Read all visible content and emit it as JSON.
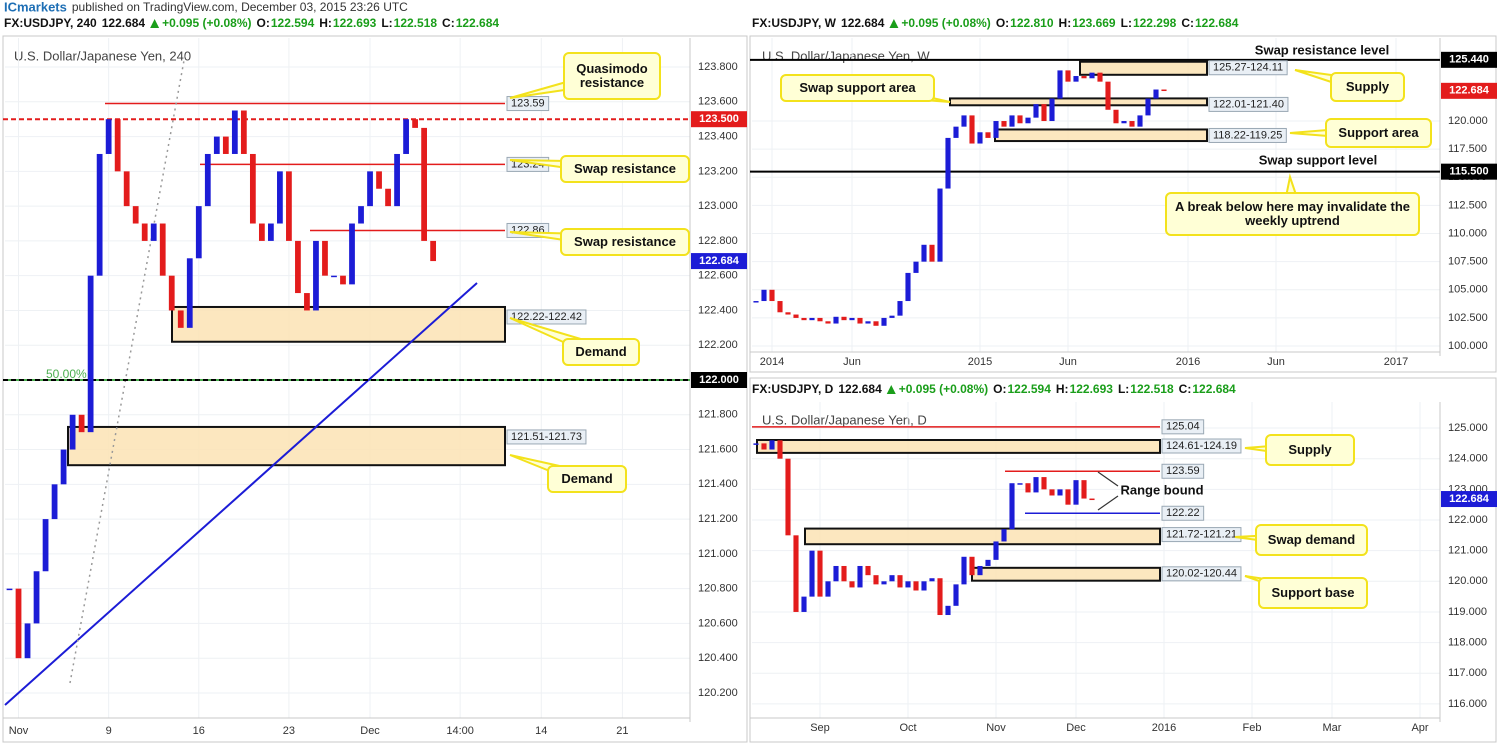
{
  "publisher": "ICmarkets",
  "byline": "published on TradingView.com, December 03, 2015 23:26 UTC",
  "chart_data": [
    {
      "type": "candlestick",
      "header": {
        "symbol": "FX:USDJPY, 240",
        "last": "122.684",
        "change": "+0.095 (+0.08%)",
        "ohlc": [
          {
            "label": "O:",
            "value": "122.594"
          },
          {
            "label": "H:",
            "value": "122.693"
          },
          {
            "label": "L:",
            "value": "122.518"
          },
          {
            "label": "C:",
            "value": "122.684"
          }
        ]
      },
      "title": "U.S. Dollar/Japanese Yen, 240",
      "categories": [
        null,
        "Nov",
        null,
        null,
        null,
        null,
        null,
        null,
        null,
        null,
        null,
        "9",
        null,
        null,
        null,
        null,
        null,
        null,
        null,
        null,
        null,
        "16",
        null,
        null,
        null,
        null,
        null,
        null,
        null,
        null,
        null,
        "23",
        null,
        null,
        null,
        null,
        null,
        null,
        null,
        null,
        "Dec",
        null,
        null,
        null,
        null,
        null,
        null,
        null,
        null,
        null,
        "14:00",
        null,
        null,
        null,
        null,
        null,
        null,
        null,
        null,
        "14",
        null,
        null,
        null,
        null,
        null,
        null,
        null,
        null,
        "21",
        null,
        null,
        null,
        null,
        null,
        null,
        null
      ],
      "closes": [
        120.8,
        120.4,
        120.6,
        120.9,
        121.2,
        121.4,
        121.6,
        121.8,
        121.7,
        122.6,
        123.3,
        123.5,
        123.2,
        123.0,
        122.9,
        122.8,
        122.9,
        122.6,
        122.4,
        122.3,
        122.7,
        123.0,
        123.3,
        123.4,
        123.3,
        123.55,
        123.3,
        122.9,
        122.8,
        122.9,
        123.2,
        122.8,
        122.5,
        122.4,
        122.8,
        122.6,
        122.6,
        122.55,
        122.9,
        123.0,
        123.2,
        123.1,
        123.0,
        123.3,
        123.5,
        123.45,
        122.8,
        122.684,
        null,
        null,
        null,
        null,
        null,
        null,
        null,
        null,
        null,
        null,
        null,
        null,
        null,
        null,
        null,
        null,
        null,
        null,
        null,
        null,
        null,
        null,
        null,
        null,
        null,
        null,
        null,
        null
      ],
      "up_color": "#1c1cd6",
      "down_color": "#e31c1c",
      "ylim": [
        120.056,
        123.967
      ],
      "yticks": [
        {
          "value": 120.2,
          "label": "120.200"
        },
        {
          "value": 120.4,
          "label": "120.400"
        },
        {
          "value": 120.6,
          "label": "120.600"
        },
        {
          "value": 120.8,
          "label": "120.800"
        },
        {
          "value": 121.0,
          "label": "121.000"
        },
        {
          "value": 121.2,
          "label": "121.200"
        },
        {
          "value": 121.4,
          "label": "121.400"
        },
        {
          "value": 121.6,
          "label": "121.600"
        },
        {
          "value": 121.8,
          "label": "121.800"
        },
        {
          "value": 122.2,
          "label": "122.200"
        },
        {
          "value": 122.4,
          "label": "122.400"
        },
        {
          "value": 122.6,
          "label": "122.600"
        },
        {
          "value": 122.8,
          "label": "122.800"
        },
        {
          "value": 123.0,
          "label": "123.000"
        },
        {
          "value": 123.2,
          "label": "123.200"
        },
        {
          "value": 123.4,
          "label": "123.400"
        },
        {
          "value": 123.6,
          "label": "123.600"
        },
        {
          "value": 123.8,
          "label": "123.800"
        }
      ],
      "grid": true,
      "levels": [
        {
          "value": 123.59,
          "label": "123.59",
          "color": "#e31c1c"
        },
        {
          "value": 123.24,
          "label": "123.24",
          "color": "#e31c1c"
        },
        {
          "value": 122.86,
          "label": "122.86",
          "color": "#e31c1c"
        }
      ],
      "zones": [
        {
          "low": 122.22,
          "high": 122.42,
          "label": "122.22-122.42"
        },
        {
          "low": 121.51,
          "high": 121.73,
          "label": "121.51-121.73"
        }
      ],
      "fib": {
        "value": 122.0,
        "label": "50.00%",
        "color": "#4caf50"
      },
      "axis_tags": [
        {
          "value": 123.5,
          "label": "123.500",
          "color": "#e31c1c",
          "line": "dashed"
        },
        {
          "value": 122.0,
          "label": "122.000",
          "color": "#000000",
          "line": "dashed"
        },
        {
          "value": 122.684,
          "label": "122.684",
          "color": "#1c1cd6"
        }
      ],
      "callouts": [
        "Quasimodo resistance",
        "Swap resistance",
        "Swap resistance",
        "Demand",
        "Demand"
      ],
      "notes": []
    },
    {
      "type": "candlestick",
      "header": {
        "symbol": "FX:USDJPY, W",
        "last": "122.684",
        "change": "+0.095 (+0.08%)",
        "ohlc": [
          {
            "label": "O:",
            "value": "122.810"
          },
          {
            "label": "H:",
            "value": "123.669"
          },
          {
            "label": "L:",
            "value": "122.298"
          },
          {
            "label": "C:",
            "value": "122.684"
          }
        ]
      },
      "title": "U.S. Dollar/Japanese Yen, W",
      "categories": [
        null,
        null,
        "2014",
        null,
        null,
        null,
        null,
        null,
        null,
        null,
        null,
        null,
        "Jun",
        null,
        null,
        null,
        null,
        null,
        null,
        null,
        null,
        null,
        null,
        null,
        null,
        null,
        null,
        null,
        "2015",
        null,
        null,
        null,
        null,
        null,
        null,
        null,
        null,
        null,
        null,
        "Jun",
        null,
        null,
        null,
        null,
        null,
        null,
        null,
        null,
        null,
        null,
        null,
        null,
        null,
        null,
        "2016",
        null,
        null,
        null,
        null,
        null,
        null,
        null,
        null,
        null,
        null,
        "Jun",
        null,
        null,
        null,
        null,
        null,
        null,
        null,
        null,
        null,
        null,
        null,
        null,
        null,
        null,
        "2017",
        null,
        null,
        null,
        null,
        null
      ],
      "closes": [
        104.0,
        105.0,
        104.0,
        103.0,
        102.8,
        102.5,
        102.3,
        102.5,
        102.2,
        102.0,
        102.6,
        102.3,
        102.5,
        102.0,
        102.2,
        101.8,
        102.5,
        102.7,
        104.0,
        106.5,
        107.5,
        109.0,
        107.5,
        114.0,
        118.5,
        119.5,
        120.5,
        118.0,
        119.0,
        118.5,
        120.0,
        119.5,
        120.5,
        119.8,
        120.3,
        121.5,
        120.0,
        122.0,
        124.5,
        123.5,
        124.0,
        123.8,
        124.3,
        123.5,
        121.0,
        119.8,
        120.0,
        119.5,
        120.5,
        122.0,
        122.8,
        122.684,
        null,
        null,
        null,
        null,
        null,
        null,
        null,
        null,
        null,
        null,
        null,
        null,
        null,
        null,
        null,
        null,
        null,
        null,
        null,
        null,
        null,
        null,
        null,
        null,
        null,
        null,
        null,
        null,
        null,
        null,
        null,
        null
      ],
      "up_color": "#1c1cd6",
      "down_color": "#e31c1c",
      "ylim": [
        99.47,
        127.38
      ],
      "yticks": [
        {
          "value": 100,
          "label": "100.000"
        },
        {
          "value": 102.5,
          "label": "102.500"
        },
        {
          "value": 105,
          "label": "105.000"
        },
        {
          "value": 107.5,
          "label": "107.500"
        },
        {
          "value": 110,
          "label": "110.000"
        },
        {
          "value": 112.5,
          "label": "112.500"
        },
        {
          "value": 115,
          "label": "115.000"
        },
        {
          "value": 117.5,
          "label": "117.500"
        },
        {
          "value": 120,
          "label": "120.000"
        }
      ],
      "grid": true,
      "levels": [],
      "zones": [
        {
          "low": 124.11,
          "high": 125.27,
          "label": "125.27-124.11"
        },
        {
          "low": 121.4,
          "high": 122.01,
          "label": "122.01-121.40"
        },
        {
          "low": 118.22,
          "high": 119.25,
          "label": "118.22-119.25"
        }
      ],
      "axis_tags": [
        {
          "value": 125.44,
          "label": "125.440",
          "color": "#000000",
          "line": "solid"
        },
        {
          "value": 115.5,
          "label": "115.500",
          "color": "#000000",
          "line": "solid"
        },
        {
          "value": 122.684,
          "label": "122.684",
          "color": "#e31c1c"
        }
      ],
      "callouts": [
        "Swap support area",
        "Supply",
        "Support area",
        "A break below here may invalidate the weekly uptrend"
      ],
      "notes": [
        "Swap resistance level",
        "Swap support level"
      ]
    },
    {
      "type": "candlestick",
      "header": {
        "symbol": "FX:USDJPY, D",
        "last": "122.684",
        "change": "+0.095 (+0.08%)",
        "ohlc": [
          {
            "label": "O:",
            "value": "122.594"
          },
          {
            "label": "H:",
            "value": "122.693"
          },
          {
            "label": "L:",
            "value": "122.518"
          },
          {
            "label": "C:",
            "value": "122.684"
          }
        ]
      },
      "title": "U.S. Dollar/Japanese Yen, D",
      "categories": [
        null,
        null,
        null,
        null,
        null,
        null,
        null,
        null,
        "Sep",
        null,
        null,
        null,
        null,
        null,
        null,
        null,
        null,
        null,
        null,
        "Oct",
        null,
        null,
        null,
        null,
        null,
        null,
        null,
        null,
        null,
        null,
        "Nov",
        null,
        null,
        null,
        null,
        null,
        null,
        null,
        null,
        null,
        "Dec",
        null,
        null,
        null,
        null,
        null,
        null,
        null,
        null,
        null,
        null,
        "2016",
        null,
        null,
        null,
        null,
        null,
        null,
        null,
        null,
        null,
        null,
        "Feb",
        null,
        null,
        null,
        null,
        null,
        null,
        null,
        null,
        null,
        "Mar",
        null,
        null,
        null,
        null,
        null,
        null,
        null,
        null,
        null,
        null,
        "Apr",
        null,
        null
      ],
      "closes": [
        124.5,
        124.3,
        124.6,
        124.0,
        121.5,
        119.0,
        119.5,
        121.0,
        119.5,
        120.0,
        120.5,
        120.0,
        119.8,
        120.5,
        120.2,
        119.9,
        120.0,
        120.2,
        119.8,
        120.0,
        119.7,
        120.0,
        120.1,
        118.9,
        119.2,
        119.9,
        120.8,
        120.2,
        120.5,
        120.7,
        121.3,
        121.7,
        123.2,
        123.2,
        122.9,
        123.4,
        123.0,
        122.8,
        123.0,
        122.5,
        123.3,
        122.7,
        122.684,
        null,
        null,
        null,
        null,
        null,
        null,
        null,
        null,
        null,
        null,
        null,
        null,
        null,
        null,
        null,
        null,
        null,
        null,
        null,
        null,
        null,
        null,
        null,
        null,
        null,
        null,
        null,
        null,
        null,
        null,
        null,
        null,
        null,
        null,
        null,
        null,
        null,
        null,
        null,
        null,
        null,
        null,
        null
      ],
      "up_color": "#1c1cd6",
      "down_color": "#e31c1c",
      "ylim": [
        115.54,
        125.85
      ],
      "yticks": [
        {
          "value": 116,
          "label": "116.000"
        },
        {
          "value": 117,
          "label": "117.000"
        },
        {
          "value": 118,
          "label": "118.000"
        },
        {
          "value": 119,
          "label": "119.000"
        },
        {
          "value": 120,
          "label": "120.000"
        },
        {
          "value": 121,
          "label": "121.000"
        },
        {
          "value": 122,
          "label": "122.000"
        },
        {
          "value": 123,
          "label": "123.000"
        },
        {
          "value": 124,
          "label": "124.000"
        },
        {
          "value": 125,
          "label": "125.000"
        }
      ],
      "grid": true,
      "levels": [
        {
          "value": 125.04,
          "label": "125.04",
          "color": "#e31c1c"
        },
        {
          "value": 123.59,
          "label": "123.59",
          "color": "#e31c1c"
        },
        {
          "value": 122.22,
          "label": "122.22",
          "color": "#1c1cd6"
        }
      ],
      "zones": [
        {
          "low": 124.19,
          "high": 124.61,
          "label": "124.61-124.19"
        },
        {
          "low": 121.21,
          "high": 121.72,
          "label": "121.72-121.21"
        },
        {
          "low": 120.02,
          "high": 120.44,
          "label": "120.02-120.44"
        }
      ],
      "axis_tags": [
        {
          "value": 122.684,
          "label": "122.684",
          "color": "#1c1cd6"
        }
      ],
      "callouts": [
        "Supply",
        "Swap demand",
        "Support base"
      ],
      "notes": [
        "Range bound"
      ]
    }
  ]
}
